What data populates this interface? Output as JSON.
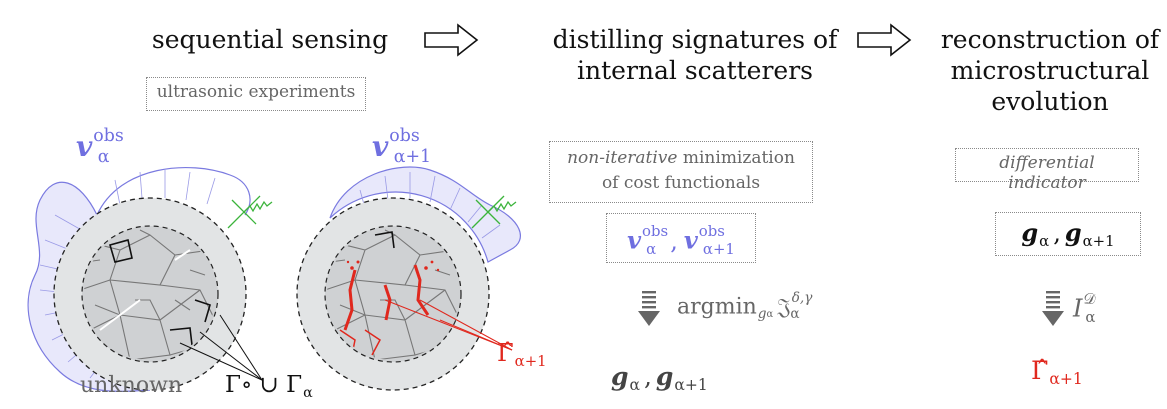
{
  "stages": [
    {
      "title": "sequential sensing"
    },
    {
      "title_line1": "distilling signatures of",
      "title_line2": "internal scatterers"
    },
    {
      "title_line1": "reconstruction of",
      "title_line2": "microstructural",
      "title_line3": "evolution"
    }
  ],
  "boxes": {
    "experiments": "ultrasonic experiments",
    "minimization_em": "non-iterative",
    "minimization_rest": " minimization",
    "minimization_line2": "of cost functionals",
    "indicator": "differential indicator"
  },
  "symbols": {
    "v": "v",
    "obs": "obs",
    "alpha": "α",
    "alpha_plus_1": "α+1",
    "g": "g",
    "comma": ",",
    "argmin": "argmin",
    "frak_j": "𝔍",
    "delta_gamma": "δ,γ",
    "indicator_I": "I",
    "indicator_sup": "𝒟",
    "gamma_hat": "Γ̂",
    "gamma_union": "Γ∘ ∪ Γ",
    "unknown": "unknown"
  },
  "colors": {
    "blue": "#6f6fe0",
    "red": "#e0281e",
    "green": "#3cb43c",
    "grey": "#666666",
    "specimen_fill": "#e2e4e5"
  },
  "icons": [
    "right-arrow-outline-icon",
    "down-arrow-icon",
    "transducer-icon"
  ]
}
